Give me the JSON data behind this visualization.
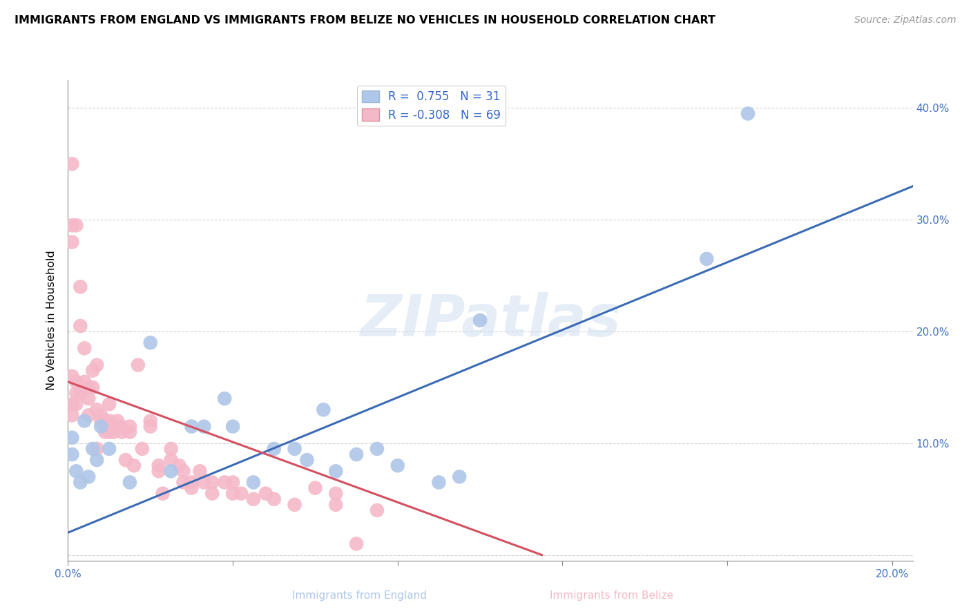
{
  "title": "IMMIGRANTS FROM ENGLAND VS IMMIGRANTS FROM BELIZE NO VEHICLES IN HOUSEHOLD CORRELATION CHART",
  "source": "Source: ZipAtlas.com",
  "legend_england": "Immigrants from England",
  "legend_belize": "Immigrants from Belize",
  "ylabel": "No Vehicles in Household",
  "england_R": 0.755,
  "england_N": 31,
  "belize_R": -0.308,
  "belize_N": 69,
  "england_color": "#aec6e8",
  "belize_color": "#f5b8c8",
  "england_line_color": "#3c6bb5",
  "belize_line_color": "#d45060",
  "watermark": "ZIPatlas",
  "xlim": [
    0.0,
    0.205
  ],
  "ylim": [
    -0.005,
    0.425
  ],
  "england_x": [
    0.001,
    0.001,
    0.002,
    0.003,
    0.004,
    0.005,
    0.006,
    0.007,
    0.008,
    0.01,
    0.015,
    0.02,
    0.025,
    0.03,
    0.033,
    0.038,
    0.04,
    0.045,
    0.05,
    0.055,
    0.058,
    0.062,
    0.065,
    0.07,
    0.075,
    0.08,
    0.09,
    0.095,
    0.1,
    0.155,
    0.165
  ],
  "england_y": [
    0.105,
    0.09,
    0.075,
    0.065,
    0.12,
    0.07,
    0.095,
    0.085,
    0.115,
    0.095,
    0.065,
    0.19,
    0.075,
    0.115,
    0.115,
    0.14,
    0.115,
    0.065,
    0.095,
    0.095,
    0.085,
    0.13,
    0.075,
    0.09,
    0.095,
    0.08,
    0.065,
    0.07,
    0.21,
    0.265,
    0.395
  ],
  "belize_x": [
    0.001,
    0.001,
    0.001,
    0.001,
    0.001,
    0.001,
    0.002,
    0.002,
    0.002,
    0.002,
    0.003,
    0.003,
    0.003,
    0.004,
    0.004,
    0.005,
    0.005,
    0.005,
    0.006,
    0.006,
    0.007,
    0.007,
    0.007,
    0.008,
    0.008,
    0.009,
    0.009,
    0.01,
    0.01,
    0.01,
    0.011,
    0.012,
    0.013,
    0.013,
    0.014,
    0.015,
    0.015,
    0.016,
    0.017,
    0.018,
    0.02,
    0.02,
    0.022,
    0.022,
    0.023,
    0.025,
    0.025,
    0.027,
    0.028,
    0.028,
    0.03,
    0.03,
    0.032,
    0.033,
    0.035,
    0.035,
    0.038,
    0.04,
    0.04,
    0.042,
    0.045,
    0.048,
    0.05,
    0.055,
    0.06,
    0.065,
    0.065,
    0.07,
    0.075
  ],
  "belize_y": [
    0.35,
    0.295,
    0.28,
    0.16,
    0.135,
    0.125,
    0.295,
    0.155,
    0.145,
    0.135,
    0.24,
    0.205,
    0.145,
    0.185,
    0.155,
    0.15,
    0.14,
    0.125,
    0.165,
    0.15,
    0.17,
    0.13,
    0.095,
    0.125,
    0.12,
    0.12,
    0.11,
    0.135,
    0.12,
    0.11,
    0.11,
    0.12,
    0.115,
    0.11,
    0.085,
    0.115,
    0.11,
    0.08,
    0.17,
    0.095,
    0.12,
    0.115,
    0.08,
    0.075,
    0.055,
    0.095,
    0.085,
    0.08,
    0.075,
    0.065,
    0.065,
    0.06,
    0.075,
    0.065,
    0.065,
    0.055,
    0.065,
    0.065,
    0.055,
    0.055,
    0.05,
    0.055,
    0.05,
    0.045,
    0.06,
    0.055,
    0.045,
    0.01,
    0.04
  ],
  "eng_line_x0": 0.0,
  "eng_line_y0": 0.02,
  "eng_line_x1": 0.205,
  "eng_line_y1": 0.33,
  "bel_line_x0": 0.0,
  "bel_line_y0": 0.155,
  "bel_line_x1": 0.115,
  "bel_line_y1": 0.0
}
